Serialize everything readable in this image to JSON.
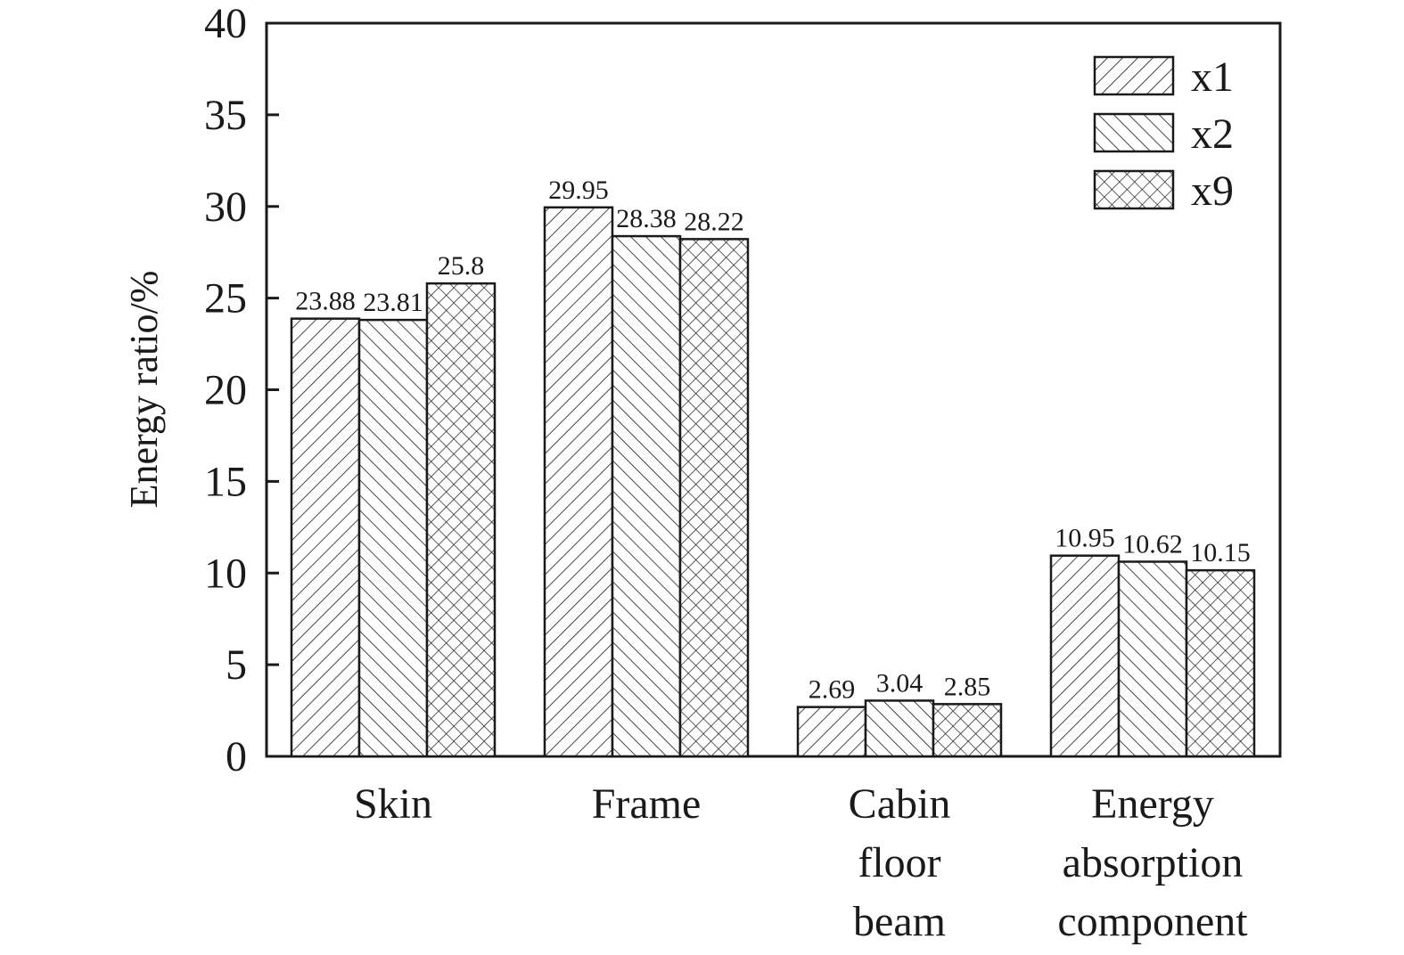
{
  "chart_data": {
    "type": "bar",
    "title": "",
    "xlabel": "",
    "ylabel": "Energy ratio/%",
    "ylim": [
      0,
      40
    ],
    "yticks": [
      0,
      5,
      10,
      15,
      20,
      25,
      30,
      35,
      40
    ],
    "grid": false,
    "legend_position": "top-right",
    "categories": [
      [
        "Skin"
      ],
      [
        "Frame"
      ],
      [
        "Cabin",
        "floor",
        "beam"
      ],
      [
        "Energy",
        "absorption",
        "component"
      ]
    ],
    "series": [
      {
        "name": "x1",
        "pattern": "diagonal-forward",
        "values": [
          23.88,
          29.95,
          2.69,
          10.95
        ],
        "labels": [
          "23.88",
          "29.95",
          "2.69",
          "10.95"
        ]
      },
      {
        "name": "x2",
        "pattern": "diagonal-backward",
        "values": [
          23.81,
          28.38,
          3.04,
          10.62
        ],
        "labels": [
          "23.81",
          "28.38",
          "3.04",
          "10.62"
        ]
      },
      {
        "name": "x9",
        "pattern": "crosshatch",
        "values": [
          25.8,
          28.22,
          2.85,
          10.15
        ],
        "labels": [
          "25.8",
          "28.22",
          "2.85",
          "10.15"
        ]
      }
    ],
    "colors": {
      "stroke": "#1a1a1a",
      "fill": "#ffffff"
    }
  }
}
